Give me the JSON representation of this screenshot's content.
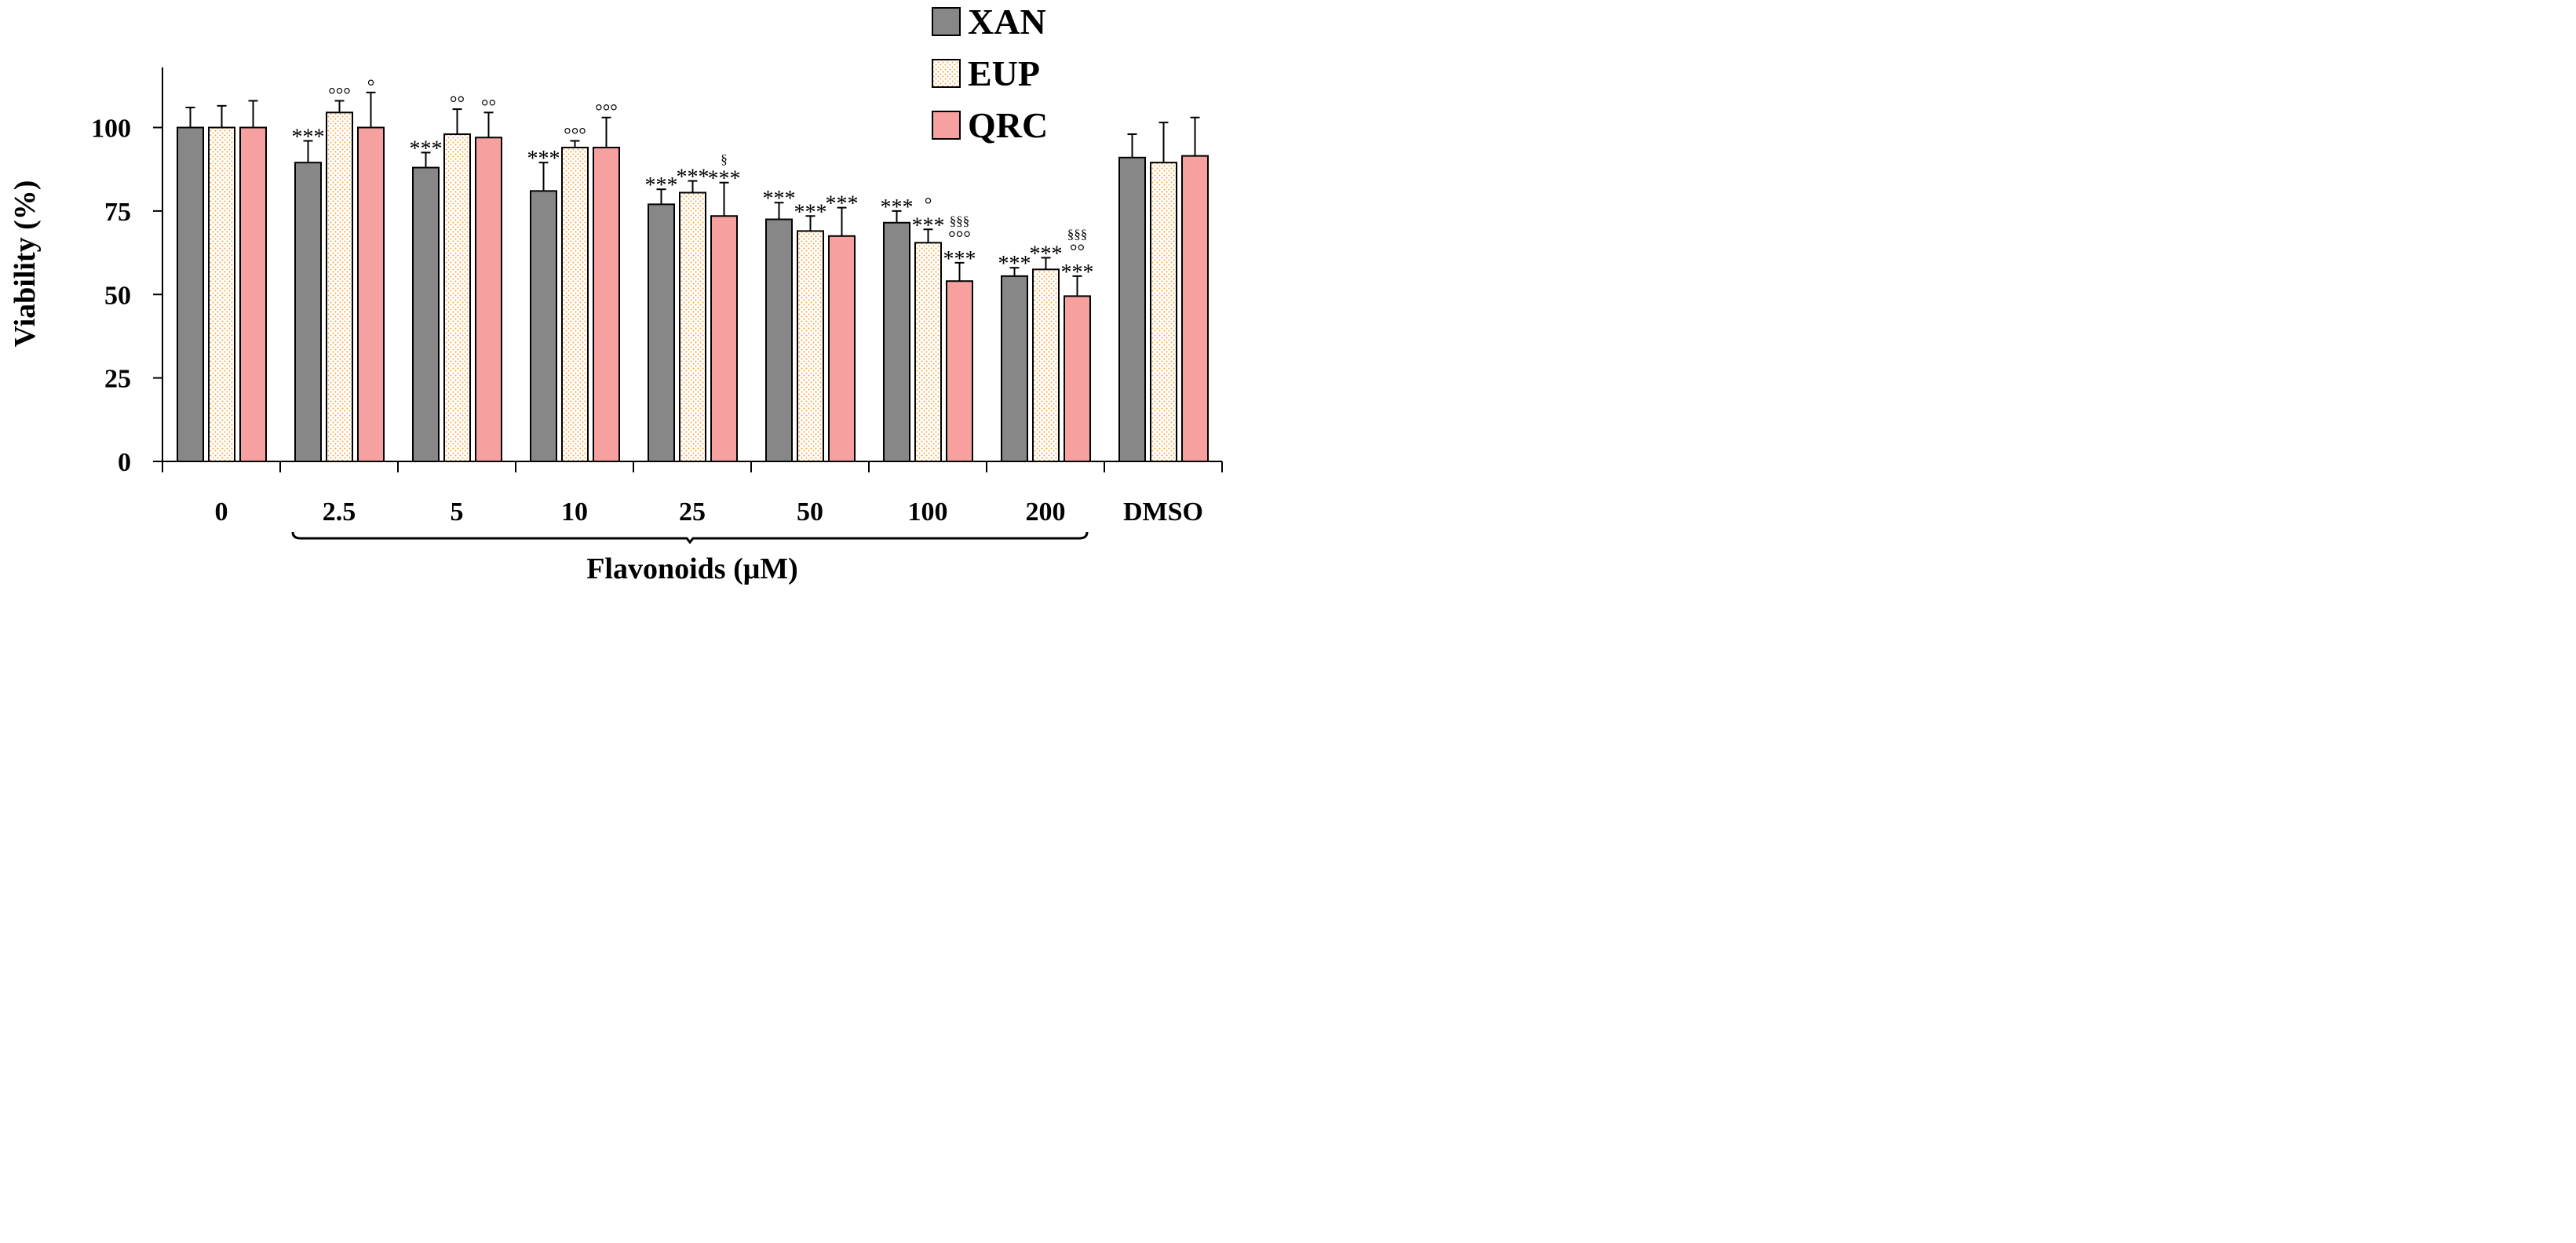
{
  "chart_data": {
    "type": "bar",
    "title": "",
    "xlabel": "Flavonoids (μM)",
    "ylabel": "Viability (%)",
    "ylim": [
      0,
      118
    ],
    "yticks": [
      0,
      25,
      50,
      75,
      100
    ],
    "grid": false,
    "legend_position": "top-right",
    "categories": [
      "0",
      "2.5",
      "5",
      "10",
      "25",
      "50",
      "100",
      "200",
      "DMSO"
    ],
    "bracket_label_range": [
      "2.5",
      "200"
    ],
    "series": [
      {
        "name": "XAN",
        "color": "#878787",
        "pattern": "solid",
        "values": [
          100,
          89.5,
          88,
          81,
          77,
          72.5,
          71.5,
          55.5,
          91
        ],
        "errors": [
          6,
          6.5,
          4.5,
          8.5,
          4.5,
          5,
          3.5,
          2.5,
          7
        ],
        "annotations": [
          [],
          [
            "***"
          ],
          [
            "***"
          ],
          [
            "***"
          ],
          [
            "***"
          ],
          [
            "***"
          ],
          [
            "***"
          ],
          [
            "***"
          ],
          []
        ]
      },
      {
        "name": "EUP",
        "color": "#f5a23d",
        "pattern": "dotted",
        "values": [
          100,
          104.5,
          98,
          94,
          80.5,
          69,
          65.5,
          57.5,
          89.5
        ],
        "errors": [
          6.5,
          3.5,
          7.5,
          2,
          3.5,
          4.5,
          4,
          3.5,
          12
        ],
        "annotations": [
          [],
          [
            "°°°"
          ],
          [
            "°°"
          ],
          [
            "°°°"
          ],
          [
            "***"
          ],
          [
            "***"
          ],
          [
            "°",
            "***"
          ],
          [
            "***"
          ],
          []
        ]
      },
      {
        "name": "QRC",
        "color": "#f7a0a0",
        "pattern": "solid",
        "values": [
          100,
          100,
          97,
          94,
          73.5,
          67.5,
          54,
          49.5,
          91.5
        ],
        "errors": [
          8,
          10.5,
          7.5,
          9,
          10,
          8.5,
          5.5,
          6,
          11.5
        ],
        "annotations": [
          [],
          [
            "°"
          ],
          [
            "°°"
          ],
          [
            "°°°"
          ],
          [
            "§",
            "***"
          ],
          [
            "***"
          ],
          [
            "§§§",
            "°°°",
            "***"
          ],
          [
            "§§§",
            "°°",
            "***"
          ],
          []
        ]
      }
    ]
  }
}
